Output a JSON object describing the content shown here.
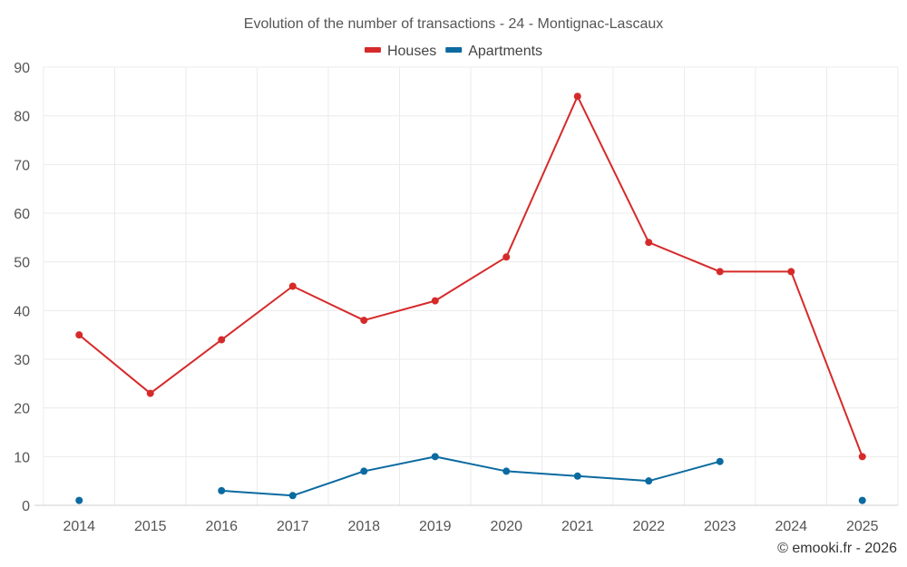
{
  "chart_data": {
    "type": "line",
    "title": "Evolution of the number of transactions - 24 - Montignac-Lascaux",
    "xlabel": "",
    "ylabel": "",
    "categories": [
      "2014",
      "2015",
      "2016",
      "2017",
      "2018",
      "2019",
      "2020",
      "2021",
      "2022",
      "2023",
      "2024",
      "2025"
    ],
    "ylim": [
      0,
      90
    ],
    "yticks": [
      0,
      10,
      20,
      30,
      40,
      50,
      60,
      70,
      80,
      90
    ],
    "grid": true,
    "legend_position": "top-center",
    "series": [
      {
        "name": "Houses",
        "color": "#d62a2a",
        "values": [
          35,
          23,
          34,
          45,
          38,
          42,
          51,
          84,
          54,
          48,
          48,
          10
        ]
      },
      {
        "name": "Apartments",
        "color": "#0b6aa0",
        "values": [
          1,
          null,
          3,
          2,
          7,
          10,
          7,
          6,
          5,
          9,
          null,
          1
        ]
      }
    ]
  },
  "credit": "© emooki.fr - 2026"
}
